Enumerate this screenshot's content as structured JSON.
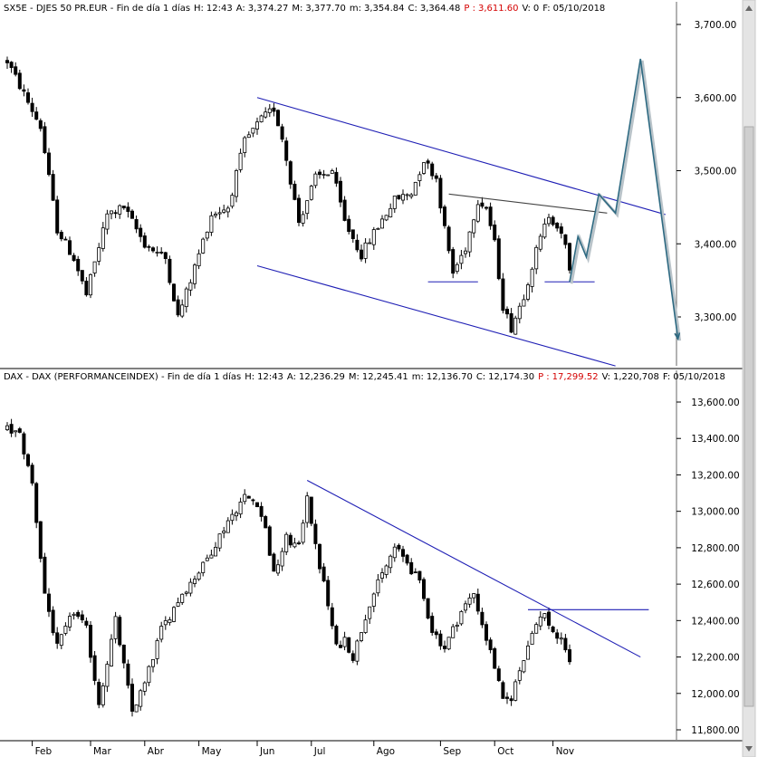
{
  "chart_data": [
    {
      "type": "candlestick",
      "symbol": "SX5E",
      "header": {
        "name": "SX5E - DJES 50 PR.EUR - Fin de día 1 días",
        "fields": [
          {
            "label": "H:",
            "value": "12:43"
          },
          {
            "label": "A:",
            "value": "3,374.27"
          },
          {
            "label": "M:",
            "value": "3,377.70"
          },
          {
            "label": "m:",
            "value": "3,354.84"
          },
          {
            "label": "C:",
            "value": "3,364.48"
          },
          {
            "label": "P :",
            "value": "3,611.60",
            "color": "#d40000"
          },
          {
            "label": "V:",
            "value": "0"
          },
          {
            "label": "F:",
            "value": "05/10/2018"
          }
        ]
      },
      "ylim": [
        3220,
        3730
      ],
      "yticks": [
        3700,
        3600,
        3500,
        3400,
        3300
      ],
      "ytick_labels": [
        "3,700.00",
        "3,600.00",
        "3,500.00",
        "3,400.00",
        "3,300.00"
      ],
      "anchors": [
        {
          "t": 0,
          "v": 3650
        },
        {
          "t": 8,
          "v": 3560
        },
        {
          "t": 12,
          "v": 3420
        },
        {
          "t": 16,
          "v": 3380
        },
        {
          "t": 19,
          "v": 3330
        },
        {
          "t": 24,
          "v": 3440
        },
        {
          "t": 28,
          "v": 3450
        },
        {
          "t": 33,
          "v": 3400
        },
        {
          "t": 38,
          "v": 3380
        },
        {
          "t": 41,
          "v": 3300
        },
        {
          "t": 44,
          "v": 3350
        },
        {
          "t": 49,
          "v": 3440
        },
        {
          "t": 53,
          "v": 3450
        },
        {
          "t": 57,
          "v": 3540
        },
        {
          "t": 61,
          "v": 3570
        },
        {
          "t": 64,
          "v": 3585
        },
        {
          "t": 66,
          "v": 3545
        },
        {
          "t": 70,
          "v": 3430
        },
        {
          "t": 74,
          "v": 3490
        },
        {
          "t": 78,
          "v": 3500
        },
        {
          "t": 81,
          "v": 3430
        },
        {
          "t": 85,
          "v": 3385
        },
        {
          "t": 88,
          "v": 3415
        },
        {
          "t": 93,
          "v": 3460
        },
        {
          "t": 97,
          "v": 3470
        },
        {
          "t": 100,
          "v": 3515
        },
        {
          "t": 103,
          "v": 3490
        },
        {
          "t": 105,
          "v": 3420
        },
        {
          "t": 107,
          "v": 3360
        },
        {
          "t": 110,
          "v": 3395
        },
        {
          "t": 113,
          "v": 3460
        },
        {
          "t": 115,
          "v": 3450
        },
        {
          "t": 117,
          "v": 3400
        },
        {
          "t": 119,
          "v": 3315
        },
        {
          "t": 121,
          "v": 3285
        },
        {
          "t": 124,
          "v": 3330
        },
        {
          "t": 127,
          "v": 3390
        },
        {
          "t": 130,
          "v": 3440
        },
        {
          "t": 132,
          "v": 3425
        },
        {
          "t": 134,
          "v": 3395
        },
        {
          "t": 135,
          "v": 3364
        }
      ],
      "trendlines": [
        {
          "style": "blue",
          "t1": 60,
          "v1": 3600,
          "t2": 158,
          "v2": 3440
        },
        {
          "style": "blue",
          "t1": 60,
          "v1": 3370,
          "t2": 146,
          "v2": 3233
        },
        {
          "style": "dark",
          "t1": 106,
          "v1": 3468,
          "t2": 144,
          "v2": 3442
        },
        {
          "style": "blue",
          "t1": 101,
          "v1": 3348,
          "t2": 113,
          "v2": 3348
        },
        {
          "style": "blue",
          "t1": 129,
          "v1": 3348,
          "t2": 141,
          "v2": 3348
        }
      ],
      "projection": [
        {
          "t": 135,
          "v": 3348
        },
        {
          "t": 137,
          "v": 3410
        },
        {
          "t": 139,
          "v": 3382
        },
        {
          "t": 142,
          "v": 3468
        },
        {
          "t": 146,
          "v": 3442
        },
        {
          "t": 152,
          "v": 3653
        },
        {
          "t": 161,
          "v": 3270
        }
      ]
    },
    {
      "type": "candlestick",
      "symbol": "DAX",
      "header": {
        "name": "DAX - DAX (PERFORMANCEINDEX) - Fin de día 1 días",
        "fields": [
          {
            "label": "H:",
            "value": "12:43"
          },
          {
            "label": "A:",
            "value": "12,236.29"
          },
          {
            "label": "M:",
            "value": "12,245.41"
          },
          {
            "label": "m:",
            "value": "12,136.70"
          },
          {
            "label": "C:",
            "value": "12,174.30"
          },
          {
            "label": "P :",
            "value": "17,299.52",
            "color": "#d40000"
          },
          {
            "label": "V:",
            "value": "1,220,708"
          },
          {
            "label": "F:",
            "value": "05/10/2018"
          }
        ]
      },
      "ylim": [
        11700,
        13720
      ],
      "yticks": [
        13600,
        13400,
        13200,
        13000,
        12800,
        12600,
        12400,
        12200,
        12000,
        11800
      ],
      "ytick_labels": [
        "13,600.00",
        "13,400.00",
        "13,200.00",
        "13,000.00",
        "12,800.00",
        "12,600.00",
        "12,400.00",
        "12,200.00",
        "12,000.00",
        "11,800.00"
      ],
      "anchors": [
        {
          "t": 0,
          "v": 13450
        },
        {
          "t": 3,
          "v": 13420
        },
        {
          "t": 6,
          "v": 13150
        },
        {
          "t": 9,
          "v": 12550
        },
        {
          "t": 12,
          "v": 12250
        },
        {
          "t": 16,
          "v": 12450
        },
        {
          "t": 19,
          "v": 12350
        },
        {
          "t": 22,
          "v": 11950
        },
        {
          "t": 26,
          "v": 12400
        },
        {
          "t": 30,
          "v": 11900
        },
        {
          "t": 33,
          "v": 12050
        },
        {
          "t": 37,
          "v": 12350
        },
        {
          "t": 42,
          "v": 12550
        },
        {
          "t": 47,
          "v": 12700
        },
        {
          "t": 53,
          "v": 12950
        },
        {
          "t": 57,
          "v": 13080
        },
        {
          "t": 60,
          "v": 13050
        },
        {
          "t": 62,
          "v": 12900
        },
        {
          "t": 64,
          "v": 12650
        },
        {
          "t": 67,
          "v": 12850
        },
        {
          "t": 70,
          "v": 12800
        },
        {
          "t": 72,
          "v": 13100
        },
        {
          "t": 74,
          "v": 12800
        },
        {
          "t": 76,
          "v": 12600
        },
        {
          "t": 79,
          "v": 12250
        },
        {
          "t": 81,
          "v": 12300
        },
        {
          "t": 83,
          "v": 12200
        },
        {
          "t": 87,
          "v": 12500
        },
        {
          "t": 90,
          "v": 12650
        },
        {
          "t": 93,
          "v": 12800
        },
        {
          "t": 96,
          "v": 12720
        },
        {
          "t": 99,
          "v": 12600
        },
        {
          "t": 102,
          "v": 12350
        },
        {
          "t": 105,
          "v": 12250
        },
        {
          "t": 109,
          "v": 12450
        },
        {
          "t": 112,
          "v": 12550
        },
        {
          "t": 115,
          "v": 12300
        },
        {
          "t": 117,
          "v": 12150
        },
        {
          "t": 119,
          "v": 11950
        },
        {
          "t": 121,
          "v": 11980
        },
        {
          "t": 124,
          "v": 12200
        },
        {
          "t": 127,
          "v": 12400
        },
        {
          "t": 129,
          "v": 12430
        },
        {
          "t": 131,
          "v": 12340
        },
        {
          "t": 134,
          "v": 12250
        },
        {
          "t": 135,
          "v": 12174
        }
      ],
      "trendlines": [
        {
          "style": "blue",
          "t1": 72,
          "v1": 13170,
          "t2": 152,
          "v2": 12200
        },
        {
          "style": "blue",
          "t1": 125,
          "v1": 12460,
          "t2": 154,
          "v2": 12460
        }
      ],
      "projection": []
    }
  ],
  "time_axis": {
    "months": [
      {
        "label": "Feb",
        "t": 6
      },
      {
        "label": "Mar",
        "t": 20
      },
      {
        "label": "Abr",
        "t": 33
      },
      {
        "label": "May",
        "t": 46
      },
      {
        "label": "Jun",
        "t": 60
      },
      {
        "label": "Jul",
        "t": 73
      },
      {
        "label": "Ago",
        "t": 88
      },
      {
        "label": "Sep",
        "t": 104
      },
      {
        "label": "Oct",
        "t": 117
      },
      {
        "label": "Nov",
        "t": 131
      }
    ]
  },
  "colors": {
    "trendline_blue": "#1f1fb5",
    "trendline_dark": "#444444",
    "projection": "#2e6a82",
    "header_highlight": "#d40000",
    "scrollbar": "#e4e4e4"
  }
}
